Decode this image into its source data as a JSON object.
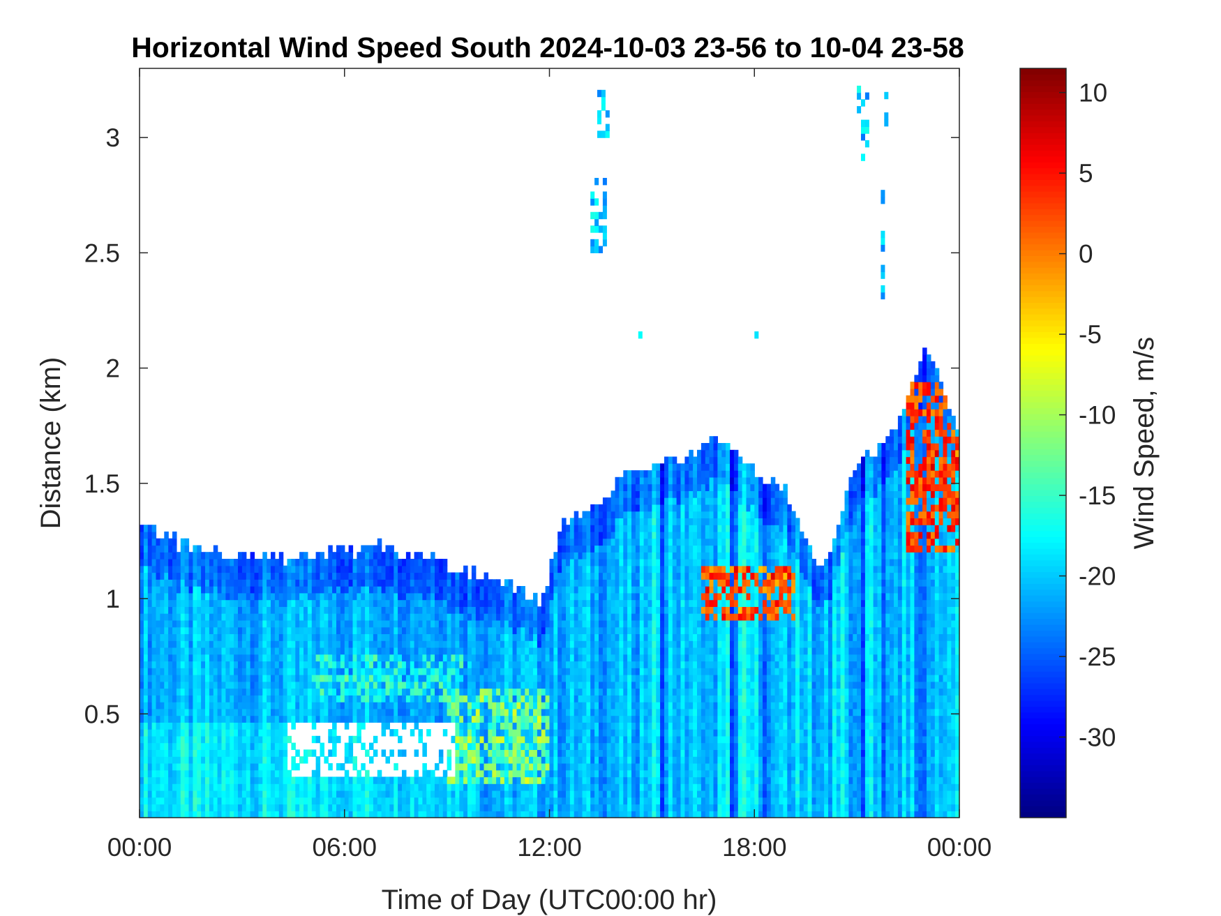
{
  "chart_data": {
    "type": "heatmap",
    "title": "Horizontal Wind Speed South 2024-10-03 23-56 to 10-04 23-58",
    "xlabel": "Time of Day (UTC00:00 hr)",
    "ylabel": "Distance (km)",
    "colorbar_label": "Wind Speed, m/s",
    "colormap": "jet",
    "x_range_hours": [
      0,
      24
    ],
    "y_range_km": [
      0.05,
      3.3
    ],
    "color_range": [
      -35,
      11.5
    ],
    "x_ticks": [
      {
        "value": 0,
        "label": "00:00"
      },
      {
        "value": 6,
        "label": "06:00"
      },
      {
        "value": 12,
        "label": "12:00"
      },
      {
        "value": 18,
        "label": "18:00"
      },
      {
        "value": 24,
        "label": "00:00"
      }
    ],
    "y_ticks": [
      {
        "value": 0.5,
        "label": "0.5"
      },
      {
        "value": 1,
        "label": "1"
      },
      {
        "value": 1.5,
        "label": "1.5"
      },
      {
        "value": 2,
        "label": "2"
      },
      {
        "value": 2.5,
        "label": "2.5"
      },
      {
        "value": 3,
        "label": "3"
      }
    ],
    "colorbar_ticks": [
      {
        "value": 10,
        "label": "10"
      },
      {
        "value": 5,
        "label": "5"
      },
      {
        "value": 0,
        "label": "0"
      },
      {
        "value": -5,
        "label": "-5"
      },
      {
        "value": -10,
        "label": "-10"
      },
      {
        "value": -15,
        "label": "-15"
      },
      {
        "value": -20,
        "label": "-20"
      },
      {
        "value": -25,
        "label": "-25"
      },
      {
        "value": -30,
        "label": "-30"
      }
    ],
    "data_top_profile": [
      {
        "hour": 0,
        "top_km": 1.33
      },
      {
        "hour": 1,
        "top_km": 1.25
      },
      {
        "hour": 2,
        "top_km": 1.2
      },
      {
        "hour": 3,
        "top_km": 1.2
      },
      {
        "hour": 4,
        "top_km": 1.18
      },
      {
        "hour": 5,
        "top_km": 1.2
      },
      {
        "hour": 6,
        "top_km": 1.2
      },
      {
        "hour": 7,
        "top_km": 1.22
      },
      {
        "hour": 8,
        "top_km": 1.2
      },
      {
        "hour": 9,
        "top_km": 1.15
      },
      {
        "hour": 10,
        "top_km": 1.1
      },
      {
        "hour": 11,
        "top_km": 1.05
      },
      {
        "hour": 11.8,
        "top_km": 1.0
      },
      {
        "hour": 12.4,
        "top_km": 1.35
      },
      {
        "hour": 13.5,
        "top_km": 1.42
      },
      {
        "hour": 14.3,
        "top_km": 1.56
      },
      {
        "hour": 15,
        "top_km": 1.58
      },
      {
        "hour": 16,
        "top_km": 1.62
      },
      {
        "hour": 17,
        "top_km": 1.7
      },
      {
        "hour": 18,
        "top_km": 1.55
      },
      {
        "hour": 19,
        "top_km": 1.45
      },
      {
        "hour": 20,
        "top_km": 1.1
      },
      {
        "hour": 21,
        "top_km": 1.6
      },
      {
        "hour": 22,
        "top_km": 1.7
      },
      {
        "hour": 23,
        "top_km": 2.1
      },
      {
        "hour": 24,
        "top_km": 1.72
      }
    ],
    "isolated_echoes": [
      {
        "hour_start": 13.2,
        "hour_end": 13.6,
        "km_start": 2.5,
        "km_end": 2.8
      },
      {
        "hour_start": 13.4,
        "hour_end": 13.7,
        "km_start": 3.0,
        "km_end": 3.2
      },
      {
        "hour_start": 14.6,
        "hour_end": 14.7,
        "km_start": 2.1,
        "km_end": 2.15
      },
      {
        "hour_start": 18.0,
        "hour_end": 18.1,
        "km_start": 2.1,
        "km_end": 2.2
      },
      {
        "hour_start": 21.0,
        "hour_end": 21.3,
        "km_start": 2.9,
        "km_end": 3.2
      },
      {
        "hour_start": 21.7,
        "hour_end": 21.8,
        "km_start": 2.3,
        "km_end": 2.75
      },
      {
        "hour_start": 21.8,
        "hour_end": 21.9,
        "km_start": 3.05,
        "km_end": 3.2
      }
    ],
    "notable_features": [
      {
        "hour_start": 4.3,
        "hour_end": 9.2,
        "km_start": 0.23,
        "km_end": 0.45,
        "value": null
      },
      {
        "hour_start": 5,
        "hour_end": 9.5,
        "km_start": 0.55,
        "km_end": 0.75,
        "value": -17
      },
      {
        "hour_start": 9,
        "hour_end": 12,
        "km_start": 0.2,
        "km_end": 0.6,
        "value": -12
      },
      {
        "hour_start": 16.5,
        "hour_end": 19.2,
        "km_start": 0.9,
        "km_end": 1.15,
        "value": 2
      },
      {
        "hour_start": 22.4,
        "hour_end": 24,
        "km_start": 1.2,
        "km_end": 1.95,
        "value": 3
      }
    ]
  }
}
